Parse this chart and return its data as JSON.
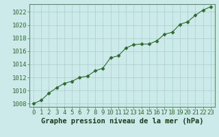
{
  "x": [
    0,
    1,
    2,
    3,
    4,
    5,
    6,
    7,
    8,
    9,
    10,
    11,
    12,
    13,
    14,
    15,
    16,
    17,
    18,
    19,
    20,
    21,
    22,
    23
  ],
  "y": [
    1008.0,
    1008.5,
    1009.6,
    1010.4,
    1011.1,
    1011.4,
    1012.0,
    1012.2,
    1013.0,
    1013.4,
    1015.0,
    1015.3,
    1016.5,
    1017.0,
    1017.1,
    1017.1,
    1017.6,
    1018.6,
    1018.9,
    1020.1,
    1020.5,
    1021.5,
    1022.3,
    1022.8
  ],
  "line_color": "#2d6a2d",
  "marker": "D",
  "marker_size": 2.5,
  "bg_color": "#cceaea",
  "grid_color": "#aacccc",
  "xlabel": "Graphe pression niveau de la mer (hPa)",
  "xlabel_fontsize": 7.5,
  "tick_fontsize": 6.5,
  "ylim": [
    1007.5,
    1023.2
  ],
  "yticks": [
    1008,
    1010,
    1012,
    1014,
    1016,
    1018,
    1020,
    1022
  ],
  "xticks": [
    0,
    1,
    2,
    3,
    4,
    5,
    6,
    7,
    8,
    9,
    10,
    11,
    12,
    13,
    14,
    15,
    16,
    17,
    18,
    19,
    20,
    21,
    22,
    23
  ],
  "spine_color": "#5a8a6a",
  "tick_color": "#336633"
}
